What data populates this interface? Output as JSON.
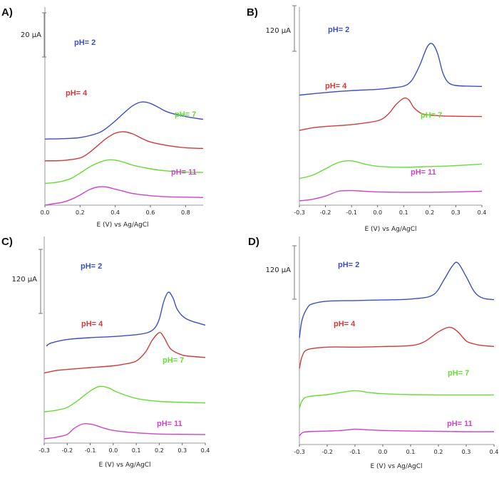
{
  "chart_data": [
    {
      "panel": "A)",
      "type": "line",
      "xlabel": "E (V) vs Ag/AgCl",
      "xlim": [
        0.0,
        0.9
      ],
      "xticks": [
        "0.0",
        "0.2",
        "0.4",
        "0.6",
        "0.8"
      ],
      "xtick_values": [
        0.0,
        0.2,
        0.4,
        0.6,
        0.8
      ],
      "scale_bar": "20 µA",
      "series": [
        {
          "name": "pH= 2",
          "label_text": "pH= 2",
          "color": "#3b4fc4",
          "offset": 90,
          "x": [
            0.0,
            0.1,
            0.2,
            0.3,
            0.35,
            0.4,
            0.45,
            0.5,
            0.55,
            0.6,
            0.65,
            0.7,
            0.8,
            0.9
          ],
          "y": [
            1,
            1.5,
            3,
            9,
            16,
            26,
            37,
            47,
            52,
            50,
            44,
            38,
            32,
            28
          ]
        },
        {
          "name": "pH= 4",
          "label_text": "pH= 4",
          "color": "#d23a3a",
          "offset": 60,
          "x": [
            0.0,
            0.1,
            0.2,
            0.25,
            0.3,
            0.35,
            0.4,
            0.45,
            0.5,
            0.55,
            0.6,
            0.7,
            0.8,
            0.9
          ],
          "y": [
            1,
            1.5,
            5,
            12,
            22,
            32,
            39,
            41,
            38,
            32,
            27,
            22,
            19,
            18
          ]
        },
        {
          "name": "pH= 7",
          "label_text": "pH= 7",
          "color": "#66dd33",
          "offset": 30,
          "x": [
            0.0,
            0.05,
            0.1,
            0.15,
            0.2,
            0.25,
            0.3,
            0.35,
            0.4,
            0.45,
            0.5,
            0.6,
            0.7,
            0.8,
            0.9
          ],
          "y": [
            0,
            1,
            3,
            7,
            14,
            22,
            28,
            32,
            32,
            29,
            25,
            20,
            17,
            15.5,
            15
          ]
        },
        {
          "name": "pH= 11",
          "label_text": "pH= 11",
          "color": "#cc44cc",
          "offset": 0,
          "x": [
            0.0,
            0.05,
            0.1,
            0.15,
            0.2,
            0.25,
            0.3,
            0.35,
            0.4,
            0.45,
            0.5,
            0.6,
            0.7,
            0.8,
            0.9
          ],
          "y": [
            0,
            2,
            4,
            8,
            14,
            21,
            25,
            25,
            22,
            19,
            16,
            13,
            11.5,
            11,
            10.5
          ]
        }
      ]
    },
    {
      "panel": "B)",
      "type": "line",
      "xlabel": "E (V) vs Ag/AgCl",
      "xlim": [
        -0.3,
        0.4
      ],
      "xticks": [
        "-0.3",
        "-0.2",
        "-0.1",
        "0.0",
        "0.1",
        "0.2",
        "0.3",
        "0.4"
      ],
      "xtick_values": [
        -0.3,
        -0.2,
        -0.1,
        0.0,
        0.1,
        0.2,
        0.3,
        0.4
      ],
      "scale_bar": "120 µA",
      "series": [
        {
          "name": "pH= 2",
          "label_text": "pH= 2",
          "color": "#3b4fc4",
          "offset": 330,
          "x": [
            -0.3,
            -0.2,
            -0.1,
            0.0,
            0.05,
            0.1,
            0.13,
            0.16,
            0.19,
            0.21,
            0.23,
            0.25,
            0.27,
            0.3,
            0.35,
            0.4
          ],
          "y": [
            0,
            8,
            14,
            18,
            22,
            28,
            45,
            90,
            150,
            160,
            130,
            70,
            40,
            30,
            28,
            27
          ]
        },
        {
          "name": "pH= 4",
          "label_text": "pH= 4",
          "color": "#d23a3a",
          "offset": 220,
          "x": [
            -0.3,
            -0.25,
            -0.2,
            -0.1,
            0.0,
            0.04,
            0.07,
            0.1,
            0.12,
            0.14,
            0.17,
            0.2,
            0.25,
            0.3,
            0.4
          ],
          "y": [
            0,
            8,
            12,
            18,
            30,
            50,
            80,
            100,
            95,
            70,
            52,
            48,
            45,
            44,
            43
          ]
        },
        {
          "name": "pH= 7",
          "label_text": "pH= 7",
          "color": "#66dd33",
          "offset": 70,
          "x": [
            -0.3,
            -0.25,
            -0.2,
            -0.15,
            -0.1,
            -0.05,
            0.0,
            0.1,
            0.2,
            0.3,
            0.4
          ],
          "y": [
            0,
            10,
            30,
            50,
            55,
            45,
            38,
            35,
            37,
            40,
            45
          ]
        },
        {
          "name": "pH= 11",
          "label_text": "pH= 11",
          "color": "#cc44cc",
          "offset": 0,
          "x": [
            -0.3,
            -0.25,
            -0.2,
            -0.15,
            -0.1,
            -0.05,
            0.0,
            0.1,
            0.2,
            0.3,
            0.4
          ],
          "y": [
            0,
            5,
            15,
            30,
            32,
            30,
            28,
            27,
            27,
            28,
            30
          ]
        }
      ]
    },
    {
      "panel": "C)",
      "type": "line",
      "xlabel": "E (V) vs Ag/AgCl",
      "xlim": [
        -0.3,
        0.4
      ],
      "xticks": [
        "-0.3",
        "-0.2",
        "-0.1",
        "0.0",
        "0.1",
        "0.2",
        "0.3",
        "0.4"
      ],
      "xtick_values": [
        -0.3,
        -0.2,
        -0.1,
        0.0,
        0.1,
        0.2,
        0.3,
        0.4
      ],
      "scale_bar": "120 µA",
      "series": [
        {
          "name": "pH= 2",
          "label_text": "pH= 2",
          "color": "#3b4fc4",
          "offset": 320,
          "x": [
            -0.29,
            -0.27,
            -0.2,
            -0.1,
            0.0,
            0.1,
            0.15,
            0.18,
            0.2,
            0.22,
            0.24,
            0.26,
            0.28,
            0.32,
            0.4
          ],
          "y": [
            -10,
            0,
            12,
            18,
            22,
            28,
            35,
            50,
            80,
            140,
            170,
            150,
            110,
            80,
            60
          ]
        },
        {
          "name": "pH= 4",
          "label_text": "pH= 4",
          "color": "#d23a3a",
          "offset": 220,
          "x": [
            -0.3,
            -0.25,
            -0.2,
            -0.1,
            0.0,
            0.05,
            0.1,
            0.14,
            0.17,
            0.2,
            0.22,
            0.25,
            0.3,
            0.35,
            0.4
          ],
          "y": [
            0,
            8,
            12,
            18,
            24,
            30,
            40,
            70,
            110,
            135,
            120,
            80,
            60,
            55,
            52
          ]
        },
        {
          "name": "pH= 7",
          "label_text": "pH= 7",
          "color": "#66dd33",
          "offset": 90,
          "x": [
            -0.3,
            -0.25,
            -0.2,
            -0.15,
            -0.1,
            -0.06,
            -0.02,
            0.02,
            0.1,
            0.2,
            0.3,
            0.4
          ],
          "y": [
            0,
            5,
            15,
            40,
            70,
            85,
            80,
            65,
            45,
            35,
            32,
            30
          ]
        },
        {
          "name": "pH= 11",
          "label_text": "pH= 11",
          "color": "#cc44cc",
          "offset": 0,
          "x": [
            -0.3,
            -0.25,
            -0.2,
            -0.17,
            -0.13,
            -0.09,
            -0.05,
            0.0,
            0.1,
            0.2,
            0.3,
            0.4
          ],
          "y": [
            0,
            5,
            15,
            35,
            50,
            48,
            38,
            28,
            20,
            16,
            15,
            14
          ]
        }
      ]
    },
    {
      "panel": "D)",
      "type": "line",
      "xlabel": "E (V) vs Ag/AgCl",
      "xlim": [
        -0.3,
        0.4
      ],
      "xticks": [
        "-0.3",
        "-0.2",
        "-0.1",
        "0.0",
        "0.1",
        "0.2",
        "0.3",
        "0.4"
      ],
      "xtick_values": [
        -0.3,
        -0.2,
        -0.1,
        0.0,
        0.1,
        0.2,
        0.3,
        0.4
      ],
      "scale_bar": "120 µA",
      "series": [
        {
          "name": "pH= 2",
          "label_text": "pH= 2",
          "color": "#3b4fc4",
          "offset": 320,
          "x": [
            -0.3,
            -0.29,
            -0.27,
            -0.25,
            -0.2,
            -0.1,
            0.0,
            0.1,
            0.18,
            0.22,
            0.25,
            0.27,
            0.3,
            0.33,
            0.36,
            0.4
          ],
          "y": [
            0,
            60,
            100,
            112,
            120,
            122,
            124,
            127,
            140,
            190,
            235,
            245,
            200,
            150,
            130,
            125
          ]
        },
        {
          "name": "pH= 4",
          "label_text": "pH= 4",
          "color": "#d23a3a",
          "offset": 220,
          "x": [
            -0.3,
            -0.29,
            -0.27,
            -0.2,
            -0.1,
            0.0,
            0.1,
            0.15,
            0.2,
            0.24,
            0.27,
            0.3,
            0.33,
            0.36,
            0.4
          ],
          "y": [
            0,
            40,
            62,
            70,
            70,
            72,
            75,
            88,
            120,
            135,
            120,
            90,
            80,
            75,
            72
          ]
        },
        {
          "name": "pH= 7",
          "label_text": "pH= 7",
          "color": "#66dd33",
          "offset": 90,
          "x": [
            -0.3,
            -0.29,
            -0.27,
            -0.2,
            -0.15,
            -0.1,
            -0.05,
            0.0,
            0.1,
            0.2,
            0.3,
            0.4
          ],
          "y": [
            0,
            25,
            38,
            45,
            52,
            58,
            52,
            48,
            45,
            44,
            44,
            44
          ]
        },
        {
          "name": "pH= 11",
          "label_text": "pH= 11",
          "color": "#cc44cc",
          "offset": 0,
          "x": [
            -0.3,
            -0.29,
            -0.27,
            -0.2,
            -0.15,
            -0.1,
            -0.05,
            0.0,
            0.1,
            0.2,
            0.3,
            0.4
          ],
          "y": [
            0,
            10,
            14,
            16,
            18,
            22,
            20,
            18,
            16,
            15,
            14,
            14
          ]
        }
      ]
    }
  ]
}
